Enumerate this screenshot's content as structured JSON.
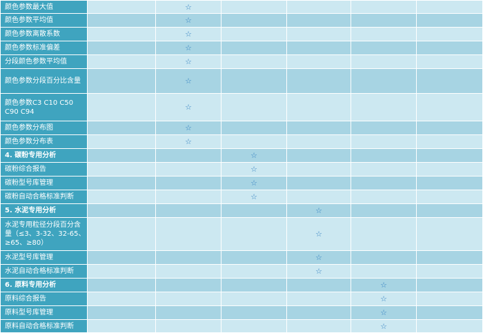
{
  "star_symbol": "☆",
  "colors": {
    "label_bg": "#3fa4bf",
    "row_light": "#cce8f1",
    "row_dark": "#a7d4e3",
    "star": "#2f7ec0"
  },
  "rows": [
    {
      "label": "颜色参数最大值",
      "star_col": 2,
      "section": false,
      "height": 19
    },
    {
      "label": "颜色参数平均值",
      "star_col": 2,
      "section": false,
      "height": 20
    },
    {
      "label": "颜色参数离散系数",
      "star_col": 2,
      "section": false,
      "height": 20
    },
    {
      "label": "颜色参数标准偏差",
      "star_col": 2,
      "section": false,
      "height": 20
    },
    {
      "label": "分段颜色参数平均值",
      "star_col": 2,
      "section": false,
      "height": 20
    },
    {
      "label": "颜色参数分段百分比含量",
      "star_col": 2,
      "section": false,
      "height": 36
    },
    {
      "label": "颜色参数C3 C10 C50 C90 C94",
      "star_col": 2,
      "section": false,
      "height": 40
    },
    {
      "label": "颜色参数分布图",
      "star_col": 2,
      "section": false,
      "height": 20
    },
    {
      "label": "颜色参数分布表",
      "star_col": 2,
      "section": false,
      "height": 20
    },
    {
      "label": "4. 碳粉专用分析",
      "star_col": 3,
      "section": true,
      "height": 20
    },
    {
      "label": "碳粉综合报告",
      "star_col": 3,
      "section": false,
      "height": 20
    },
    {
      "label": "碳粉型号库管理",
      "star_col": 3,
      "section": false,
      "height": 20
    },
    {
      "label": "碳粉自动合格标准判断",
      "star_col": 3,
      "section": false,
      "height": 20
    },
    {
      "label": "5. 水泥专用分析",
      "star_col": 4,
      "section": true,
      "height": 20
    },
    {
      "label": "水泥专用粒径分段百分含量（≤3、3-32、32-65、≥65、≥80）",
      "star_col": 4,
      "section": false,
      "height": 48
    },
    {
      "label": "水泥型号库管理",
      "star_col": 4,
      "section": false,
      "height": 20
    },
    {
      "label": "水泥自动合格标准判断",
      "star_col": 4,
      "section": false,
      "height": 20
    },
    {
      "label": "6. 原料专用分析",
      "star_col": 5,
      "section": true,
      "height": 20
    },
    {
      "label": "原料综合报告",
      "star_col": 5,
      "section": false,
      "height": 20
    },
    {
      "label": "原料型号库管理",
      "star_col": 5,
      "section": false,
      "height": 20
    },
    {
      "label": "原料自动合格标准判断",
      "star_col": 5,
      "section": false,
      "height": 19
    }
  ]
}
